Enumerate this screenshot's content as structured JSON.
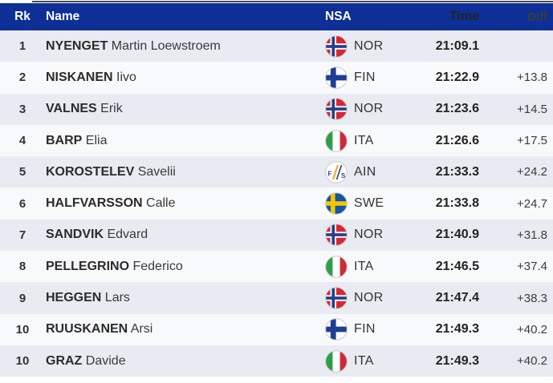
{
  "table": {
    "headers": {
      "rank": "Rk",
      "name": "Name",
      "nsa": "NSA",
      "time": "Time",
      "diff": "Diff"
    },
    "rows": [
      {
        "rank": "1",
        "surname": "NYENGET",
        "given": "Martin Loewstroem",
        "nsa": "NOR",
        "flag": "nor",
        "time": "21:09.1",
        "diff": ""
      },
      {
        "rank": "2",
        "surname": "NISKANEN",
        "given": "Iivo",
        "nsa": "FIN",
        "flag": "fin",
        "time": "21:22.9",
        "diff": "+13.8"
      },
      {
        "rank": "3",
        "surname": "VALNES",
        "given": "Erik",
        "nsa": "NOR",
        "flag": "nor",
        "time": "21:23.6",
        "diff": "+14.5"
      },
      {
        "rank": "4",
        "surname": "BARP",
        "given": "Elia",
        "nsa": "ITA",
        "flag": "ita",
        "time": "21:26.6",
        "diff": "+17.5"
      },
      {
        "rank": "5",
        "surname": "KOROSTELEV",
        "given": "Savelii",
        "nsa": "AIN",
        "flag": "ain",
        "time": "21:33.3",
        "diff": "+24.2"
      },
      {
        "rank": "6",
        "surname": "HALFVARSSON",
        "given": "Calle",
        "nsa": "SWE",
        "flag": "swe",
        "time": "21:33.8",
        "diff": "+24.7"
      },
      {
        "rank": "7",
        "surname": "SANDVIK",
        "given": "Edvard",
        "nsa": "NOR",
        "flag": "nor",
        "time": "21:40.9",
        "diff": "+31.8"
      },
      {
        "rank": "8",
        "surname": "PELLEGRINO",
        "given": "Federico",
        "nsa": "ITA",
        "flag": "ita",
        "time": "21:46.5",
        "diff": "+37.4"
      },
      {
        "rank": "9",
        "surname": "HEGGEN",
        "given": "Lars",
        "nsa": "NOR",
        "flag": "nor",
        "time": "21:47.4",
        "diff": "+38.3"
      },
      {
        "rank": "10",
        "surname": "RUUSKANEN",
        "given": "Arsi",
        "nsa": "FIN",
        "flag": "fin",
        "time": "21:49.3",
        "diff": "+40.2"
      },
      {
        "rank": "10",
        "surname": "GRAZ",
        "given": "Davide",
        "nsa": "ITA",
        "flag": "ita",
        "time": "21:49.3",
        "diff": "+40.2"
      }
    ]
  },
  "colors": {
    "header_bg": "#0d2f96",
    "row_odd": "#e9ebf3",
    "row_even": "#f8f9fb",
    "tab_edge": "#484848",
    "flags": {
      "nor_red": "#d7282f",
      "cross_navy": "#23408f",
      "fin_blue": "#1f3d94",
      "swe_blue": "#1157a8",
      "swe_yellow": "#f6c500",
      "ita_green": "#2f9e49",
      "ita_red": "#ce2b37",
      "ain_orange": "#f5a623",
      "flag_border": "#c9c9c9"
    }
  }
}
